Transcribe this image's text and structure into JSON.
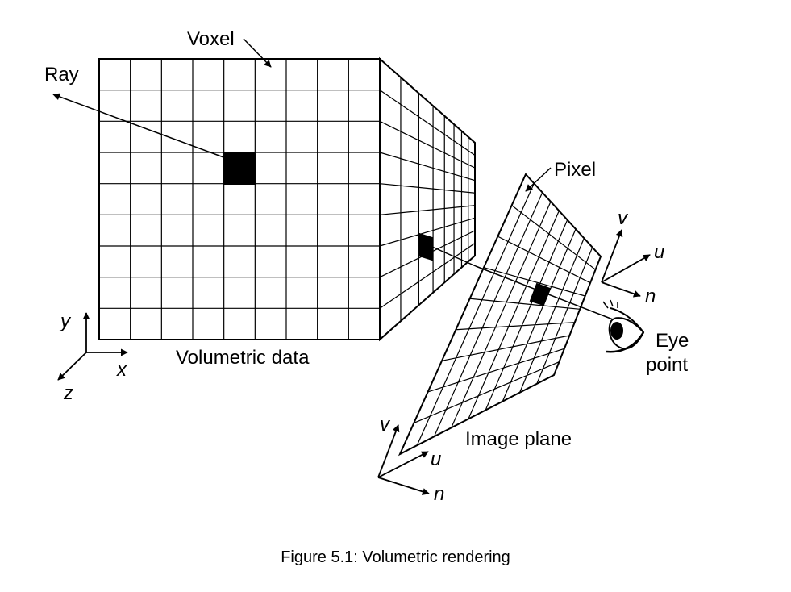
{
  "labels": {
    "voxel": "Voxel",
    "ray": "Ray",
    "pixel": "Pixel",
    "volumetric_data": "Volumetric data",
    "image_plane": "Image plane",
    "eye_line1": "Eye",
    "eye_line2": "point"
  },
  "axes": {
    "world": {
      "y": "y",
      "x": "x",
      "z": "z"
    },
    "eye": {
      "v": "v",
      "u": "u",
      "n": "n"
    },
    "plane": {
      "v": "v",
      "u": "u",
      "n": "n"
    }
  },
  "caption": "Figure 5.1: Volumetric rendering",
  "colors": {
    "stroke": "#000000",
    "fill": "#000000",
    "background": "#ffffff"
  }
}
